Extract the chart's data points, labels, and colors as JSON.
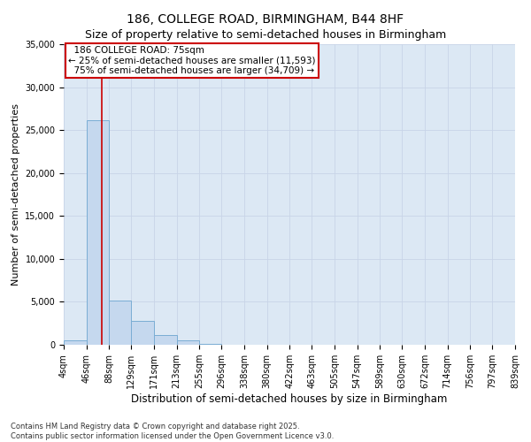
{
  "title": "186, COLLEGE ROAD, BIRMINGHAM, B44 8HF",
  "subtitle": "Size of property relative to semi-detached houses in Birmingham",
  "xlabel": "Distribution of semi-detached houses by size in Birmingham",
  "ylabel": "Number of semi-detached properties",
  "bin_edges": [
    4,
    46,
    88,
    129,
    171,
    213,
    255,
    296,
    338,
    380,
    422,
    463,
    505,
    547,
    589,
    630,
    672,
    714,
    756,
    797,
    839
  ],
  "bin_labels": [
    "4sqm",
    "46sqm",
    "88sqm",
    "129sqm",
    "171sqm",
    "213sqm",
    "255sqm",
    "296sqm",
    "338sqm",
    "380sqm",
    "422sqm",
    "463sqm",
    "505sqm",
    "547sqm",
    "589sqm",
    "630sqm",
    "672sqm",
    "714sqm",
    "756sqm",
    "797sqm",
    "839sqm"
  ],
  "counts": [
    500,
    26100,
    5100,
    2800,
    1100,
    500,
    100,
    50,
    20,
    10,
    5,
    3,
    2,
    1,
    1,
    0,
    0,
    0,
    0,
    0
  ],
  "bar_facecolor": "#c5d8ee",
  "bar_edgecolor": "#7aadd4",
  "ylim": [
    0,
    35000
  ],
  "yticks": [
    0,
    5000,
    10000,
    15000,
    20000,
    25000,
    30000,
    35000
  ],
  "property_size": 75,
  "property_name": "186 COLLEGE ROAD: 75sqm",
  "pct_smaller": 25,
  "pct_larger": 75,
  "count_smaller": 11593,
  "count_larger": 34709,
  "annotation_box_color": "#cc0000",
  "vline_color": "#cc0000",
  "grid_color": "#c8d4e8",
  "bg_color": "#dce8f4",
  "footer": "Contains HM Land Registry data © Crown copyright and database right 2025.\nContains public sector information licensed under the Open Government Licence v3.0.",
  "title_fontsize": 10,
  "annotation_fontsize": 7.5,
  "tick_fontsize": 7,
  "ylabel_fontsize": 8,
  "xlabel_fontsize": 8.5,
  "footer_fontsize": 6
}
